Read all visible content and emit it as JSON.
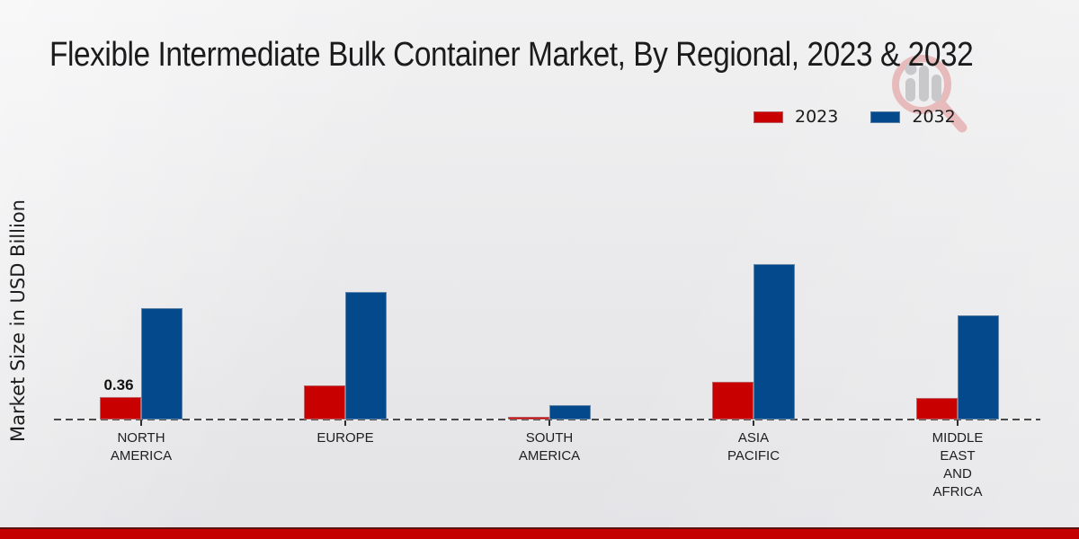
{
  "page_title": "Flexible Intermediate Bulk Container Market, By Regional, 2023 & 2032",
  "chart_data": {
    "type": "bar",
    "title": "Flexible Intermediate Bulk Container Market, By Regional, 2023 & 2032",
    "ylabel": "Market Size in USD Billion",
    "xlabel": "",
    "unit": "USD Billion",
    "categories": [
      "NORTH AMERICA",
      "EUROPE",
      "SOUTH AMERICA",
      "ASIA PACIFIC",
      "MIDDLE EAST AND AFRICA"
    ],
    "category_label_lines": [
      [
        "NORTH",
        "AMERICA"
      ],
      [
        "EUROPE"
      ],
      [
        "SOUTH",
        "AMERICA"
      ],
      [
        "ASIA",
        "PACIFIC"
      ],
      [
        "MIDDLE",
        "EAST",
        "AND",
        "AFRICA"
      ]
    ],
    "series": [
      {
        "name": "2023",
        "color": "#c80000",
        "values": [
          0.36,
          0.55,
          0.05,
          0.61,
          0.34
        ]
      },
      {
        "name": "2032",
        "color": "#04498c",
        "values": [
          1.79,
          2.05,
          0.23,
          2.49,
          1.67
        ]
      }
    ],
    "data_labels": [
      {
        "series_index": 0,
        "category_index": 0,
        "text": "0.36"
      }
    ],
    "ylim": [
      0,
      2.9
    ],
    "grid": false,
    "legend_position": "top-right",
    "baseline_style": "dashed"
  },
  "legend": {
    "items": [
      {
        "label": "2023",
        "color": "#c80000"
      },
      {
        "label": "2032",
        "color": "#04498c"
      }
    ]
  },
  "watermark": {
    "name": "market-research-magnifier-logo",
    "ring_color": "#e7b9b9",
    "glyph_color": "#c6c6ca"
  },
  "footer": {
    "bar_color": "#c40000",
    "bar_edge_color": "#5a1410"
  }
}
